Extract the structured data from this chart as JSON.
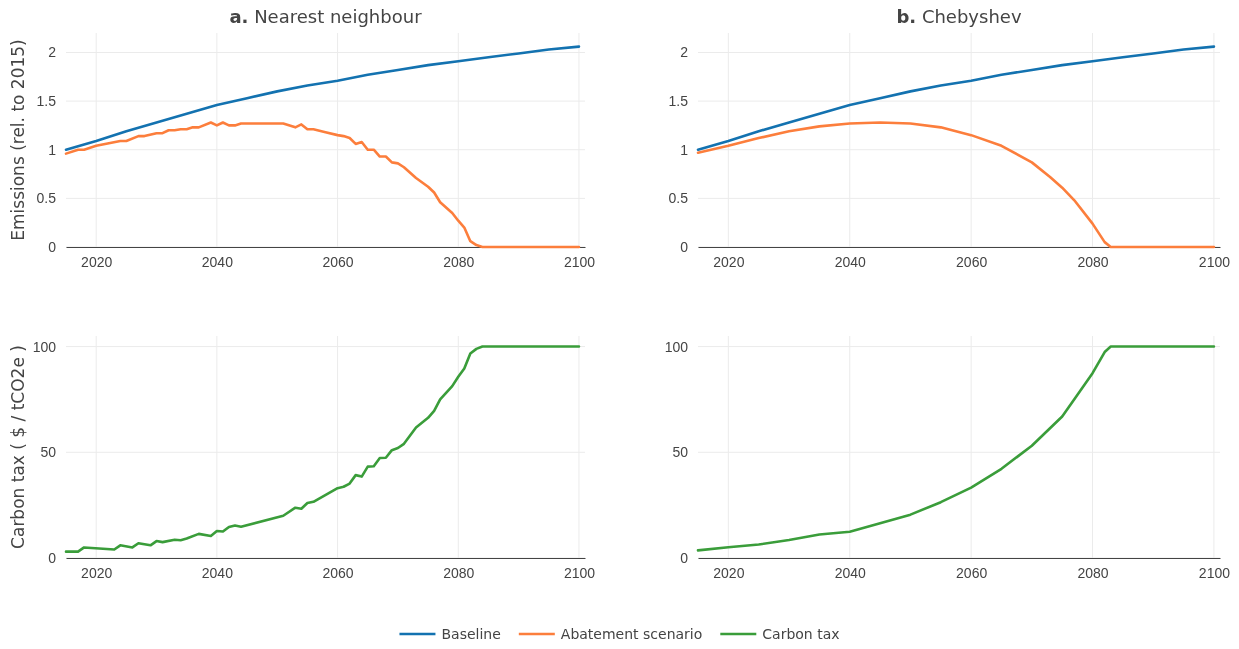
{
  "chart_data": [
    {
      "type": "line",
      "title": "a. Nearest neighbour",
      "ylabel": "Emissions (rel. to 2015)",
      "xlim": [
        2015,
        2101
      ],
      "xticks": [
        2020,
        2040,
        2060,
        2080,
        2100
      ],
      "ylim": [
        0,
        2.2
      ],
      "yticks": [
        0,
        0.5,
        1,
        1.5,
        2
      ],
      "grid": true,
      "legend": "bottom",
      "series": [
        {
          "name": "Baseline",
          "color": "#1372b0",
          "x": [
            2015,
            2020,
            2025,
            2030,
            2035,
            2040,
            2045,
            2050,
            2055,
            2060,
            2065,
            2070,
            2075,
            2080,
            2085,
            2090,
            2095,
            2100
          ],
          "values": [
            1.0,
            1.09,
            1.19,
            1.28,
            1.37,
            1.46,
            1.53,
            1.6,
            1.66,
            1.71,
            1.77,
            1.82,
            1.87,
            1.91,
            1.95,
            1.99,
            2.03,
            2.06
          ]
        },
        {
          "name": "Abatement scenario",
          "color": "#fc7e3c",
          "x": [
            2015,
            2017,
            2018,
            2020,
            2024,
            2025,
            2027,
            2028,
            2030,
            2031,
            2032,
            2033,
            2034,
            2035,
            2036,
            2037,
            2039,
            2040,
            2041,
            2042,
            2043,
            2044,
            2051,
            2053,
            2054,
            2055,
            2056,
            2058,
            2060,
            2061,
            2062,
            2063,
            2064,
            2065,
            2066,
            2067,
            2068,
            2069,
            2070,
            2071,
            2073,
            2075,
            2076,
            2077,
            2079,
            2080,
            2081,
            2082,
            2083,
            2084,
            2100
          ],
          "values": [
            0.96,
            1.0,
            1.0,
            1.04,
            1.09,
            1.09,
            1.14,
            1.14,
            1.17,
            1.17,
            1.2,
            1.2,
            1.21,
            1.21,
            1.23,
            1.23,
            1.28,
            1.25,
            1.28,
            1.25,
            1.25,
            1.27,
            1.27,
            1.23,
            1.26,
            1.21,
            1.21,
            1.18,
            1.15,
            1.14,
            1.12,
            1.06,
            1.08,
            1.0,
            1.0,
            0.93,
            0.93,
            0.87,
            0.86,
            0.82,
            0.71,
            0.62,
            0.56,
            0.46,
            0.35,
            0.27,
            0.2,
            0.06,
            0.02,
            0,
            0
          ]
        }
      ]
    },
    {
      "type": "line",
      "title": "b. Chebyshev",
      "xlim": [
        2015,
        2101
      ],
      "xticks": [
        2020,
        2040,
        2060,
        2080,
        2100
      ],
      "ylim": [
        0,
        2.2
      ],
      "yticks": [
        0,
        0.5,
        1,
        1.5,
        2
      ],
      "grid": true,
      "legend": "bottom",
      "series": [
        {
          "name": "Baseline",
          "color": "#1372b0",
          "x": [
            2015,
            2020,
            2025,
            2030,
            2035,
            2040,
            2045,
            2050,
            2055,
            2060,
            2065,
            2070,
            2075,
            2080,
            2085,
            2090,
            2095,
            2100
          ],
          "values": [
            1.0,
            1.09,
            1.19,
            1.28,
            1.37,
            1.46,
            1.53,
            1.6,
            1.66,
            1.71,
            1.77,
            1.82,
            1.87,
            1.91,
            1.95,
            1.99,
            2.03,
            2.06
          ]
        },
        {
          "name": "Abatement scenario",
          "color": "#fc7e3c",
          "x": [
            2015,
            2020,
            2025,
            2030,
            2035,
            2040,
            2045,
            2050,
            2055,
            2060,
            2065,
            2070,
            2073,
            2075,
            2077,
            2080,
            2082,
            2083,
            2100
          ],
          "values": [
            0.97,
            1.04,
            1.12,
            1.19,
            1.24,
            1.27,
            1.28,
            1.27,
            1.23,
            1.15,
            1.04,
            0.87,
            0.72,
            0.61,
            0.48,
            0.24,
            0.05,
            0,
            0
          ]
        }
      ]
    },
    {
      "type": "line",
      "ylabel": "Carbon tax ( $ / tCO2e )",
      "xlim": [
        2015,
        2101
      ],
      "xticks": [
        2020,
        2040,
        2060,
        2080,
        2100
      ],
      "ylim": [
        0,
        105
      ],
      "yticks": [
        0,
        50,
        100
      ],
      "grid": true,
      "legend": "bottom",
      "series": [
        {
          "name": "Carbon tax",
          "color": "#3a9d3a",
          "x": [
            2015,
            2017,
            2018,
            2023,
            2024,
            2026,
            2027,
            2029,
            2030,
            2031,
            2033,
            2034,
            2035,
            2037,
            2039,
            2040,
            2041,
            2042,
            2043,
            2044,
            2051,
            2053,
            2054,
            2055,
            2056,
            2060,
            2061,
            2062,
            2063,
            2064,
            2065,
            2066,
            2067,
            2068,
            2069,
            2070,
            2071,
            2073,
            2075,
            2076,
            2077,
            2079,
            2080,
            2081,
            2082,
            2083,
            2084,
            2100
          ],
          "values": [
            3,
            3,
            5,
            4,
            6,
            5,
            7,
            6,
            8,
            7.5,
            8.6,
            8.4,
            9.2,
            11.4,
            10.4,
            12.8,
            12.5,
            14.7,
            15.4,
            14.8,
            20,
            23.8,
            23.3,
            26,
            26.6,
            33,
            33.7,
            35.2,
            39.2,
            38.5,
            43.2,
            43.4,
            47.3,
            47.4,
            51,
            52,
            54,
            61.7,
            66.3,
            69.6,
            75,
            81.3,
            85.7,
            89.6,
            96.7,
            98.9,
            100,
            100
          ]
        }
      ]
    },
    {
      "type": "line",
      "xlim": [
        2015,
        2101
      ],
      "xticks": [
        2020,
        2040,
        2060,
        2080,
        2100
      ],
      "ylim": [
        0,
        105
      ],
      "yticks": [
        0,
        50,
        100
      ],
      "grid": true,
      "legend": "bottom",
      "series": [
        {
          "name": "Carbon tax",
          "color": "#3a9d3a",
          "x": [
            2015,
            2020,
            2025,
            2030,
            2035,
            2040,
            2045,
            2050,
            2055,
            2060,
            2065,
            2070,
            2075,
            2077,
            2080,
            2082,
            2083,
            2100
          ],
          "values": [
            3.6,
            5.1,
            6.4,
            8.5,
            11.1,
            12.4,
            16.4,
            20.5,
            26.4,
            33.3,
            42.2,
            53.1,
            66.9,
            75.1,
            87.4,
            97.4,
            100,
            100
          ]
        }
      ]
    }
  ]
}
